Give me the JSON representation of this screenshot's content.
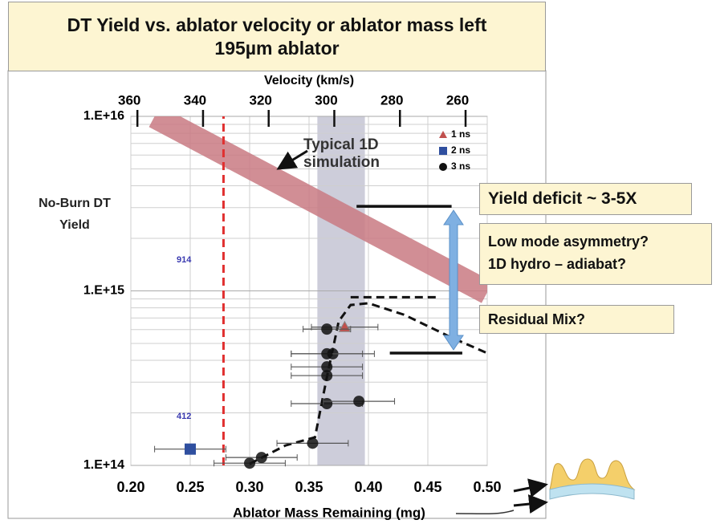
{
  "chart_data": {
    "type": "scatter",
    "title": "DT Yield vs. ablator velocity or ablator mass left",
    "subtitle": "195µm ablator",
    "xlabel": "Ablator Mass Remaining (mg)",
    "ylabel": "No-Burn DT Yield",
    "x2label": "Velocity (km/s)",
    "xlim": [
      0.2,
      0.5
    ],
    "xticks": [
      {
        "value": 0.2,
        "label": "0.20"
      },
      0.25,
      {
        "value": 0.3,
        "label": "0.30"
      },
      0.35,
      {
        "value": 0.4,
        "label": "0.40"
      },
      0.45,
      {
        "value": 0.5,
        "label": "0.50"
      }
    ],
    "x2lim": [
      362,
      253.4
    ],
    "x2ticks": [
      360,
      340,
      320,
      300,
      280,
      260
    ],
    "ylim": [
      100000000000000.0,
      1e+16
    ],
    "log_scale": true,
    "yticks": [
      {
        "value": 1e+16,
        "label": "1.E+16"
      },
      {
        "value": 1000000000000000.0,
        "label": "1.E+15"
      },
      {
        "value": 100000000000000.0,
        "label": "1.E+14"
      }
    ],
    "yminor": [
      200000000000000.0,
      300000000000000.0,
      400000000000000.0,
      500000000000000.0,
      600000000000000.0,
      700000000000000.0,
      800000000000000.0,
      900000000000000.0,
      2000000000000000.0,
      3000000000000000.0,
      4000000000000000.0,
      5000000000000000.0,
      6000000000000000.0,
      7000000000000000.0,
      8000000000000000.0,
      9000000000000000.0
    ],
    "grid": true,
    "legend": "top-right",
    "shaded_range": [
      0.357,
      0.397
    ],
    "series": [
      {
        "name": "1 ns",
        "color": "#c0504d",
        "marker": "triangle",
        "x": [
          0.38
        ],
        "values": [
          620000000000000.0
        ],
        "xerr": [
          0.028
        ]
      },
      {
        "name": "2 ns",
        "color": "#2f4f9f",
        "marker": "square",
        "x": [
          0.25
        ],
        "values": [
          124000000000000.0
        ],
        "xerr": [
          0.03
        ]
      },
      {
        "name": "3 ns",
        "color": "#111111",
        "marker": "circle",
        "x": [
          0.3,
          0.31,
          0.353,
          0.365,
          0.392,
          0.365,
          0.365,
          0.37,
          0.365,
          0.365
        ],
        "values": [
          103000000000000.0,
          111000000000000.0,
          134000000000000.0,
          226000000000000.0,
          233000000000000.0,
          327000000000000.0,
          367000000000000.0,
          436000000000000.0,
          436000000000000.0,
          604000000000000.0
        ],
        "xerr": [
          0.03,
          0.03,
          0.03,
          0.03,
          0.03,
          0.03,
          0.03,
          0.035,
          0.03,
          0.02
        ]
      }
    ],
    "curves": [
      {
        "style": "band",
        "color": "#c97a82",
        "x": [
          0.22,
          0.5
        ],
        "values": [
          1e+16,
          980000000000000.0
        ]
      },
      {
        "style": "dashed",
        "color": "#e03030",
        "x": [
          0.278,
          0.278
        ],
        "values": [
          100000000000000.0,
          1e+16
        ]
      },
      {
        "style": "dashed",
        "color": "#111111",
        "x": [
          0.3,
          0.33,
          0.355,
          0.365,
          0.375,
          0.385,
          0.4,
          0.43,
          0.47,
          0.5
        ],
        "values": [
          102000000000000.0,
          130000000000000.0,
          145000000000000.0,
          320000000000000.0,
          670000000000000.0,
          830000000000000.0,
          850000000000000.0,
          730000000000000.0,
          540000000000000.0,
          440000000000000.0
        ]
      },
      {
        "style": "dashed",
        "color": "#111111",
        "x": [
          0.385,
          0.46
        ],
        "values": [
          920000000000000.0,
          920000000000000.0
        ]
      },
      {
        "style": "solid",
        "color": "#111111",
        "x": [
          0.39,
          0.47
        ],
        "values": [
          3050000000000000.0,
          3050000000000000.0
        ]
      },
      {
        "style": "solid",
        "color": "#111111",
        "x": [
          0.418,
          0.479
        ],
        "values": [
          440000000000000.0,
          440000000000000.0
        ]
      }
    ],
    "annotations": {
      "simulation": "Typical 1D simulation",
      "deficit": "Yield deficit ~ 3-5X",
      "causes": [
        "Low mode asymmetry?",
        "1D hydro – adiabat?"
      ],
      "mix": "Residual Mix?",
      "shot_a": "914",
      "shot_b": "412"
    }
  }
}
